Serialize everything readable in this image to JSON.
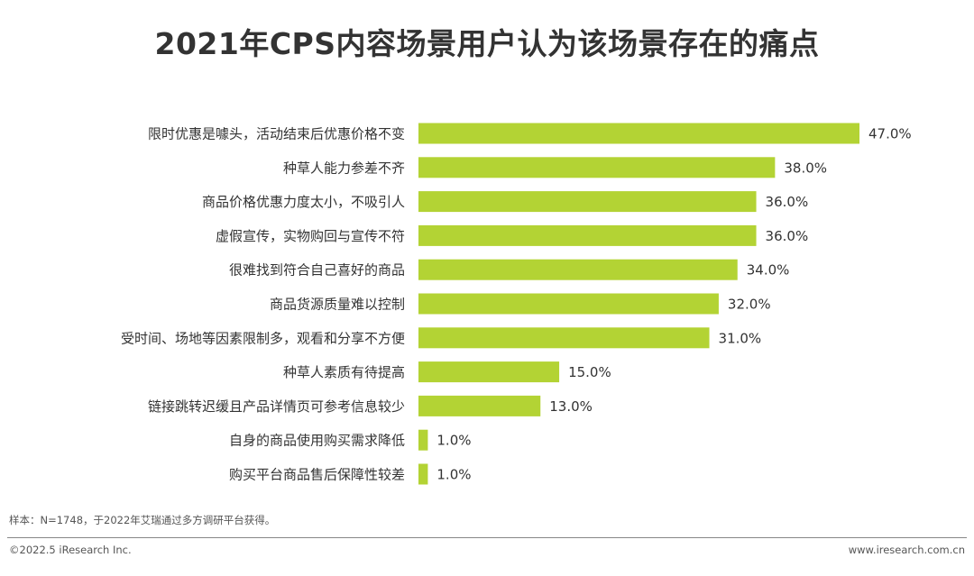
{
  "colors": {
    "bar": "#b3d334",
    "text": "#333333"
  },
  "footer": {
    "note": "样本：N=1748，于2022年艾瑞通过多方调研平台获得。",
    "copyright": "©2022.5 iResearch Inc.",
    "website": "www.iresearch.com.cn"
  },
  "chart_data": {
    "type": "bar",
    "orientation": "horizontal",
    "title": "2021年CPS内容场景用户认为该场景存在的痛点",
    "categories": [
      "限时优惠是噱头，活动结束后优惠价格不变",
      "种草人能力参差不齐",
      "商品价格优惠力度太小，不吸引人",
      "虚假宣传，实物购回与宣传不符",
      "很难找到符合自己喜好的商品",
      "商品货源质量难以控制",
      "受时间、场地等因素限制多，观看和分享不方便",
      "种草人素质有待提高",
      "链接跳转迟缓且产品详情页可参考信息较少",
      "自身的商品使用购买需求降低",
      "购买平台商品售后保障性较差"
    ],
    "values": [
      47.0,
      38.0,
      36.0,
      36.0,
      34.0,
      32.0,
      31.0,
      15.0,
      13.0,
      1.0,
      1.0
    ],
    "value_labels": [
      "47.0%",
      "38.0%",
      "36.0%",
      "36.0%",
      "34.0%",
      "32.0%",
      "31.0%",
      "15.0%",
      "13.0%",
      "1.0%",
      "1.0%"
    ],
    "unit": "%",
    "xlim": [
      0,
      47.0
    ],
    "grid": false,
    "legend": "none"
  }
}
